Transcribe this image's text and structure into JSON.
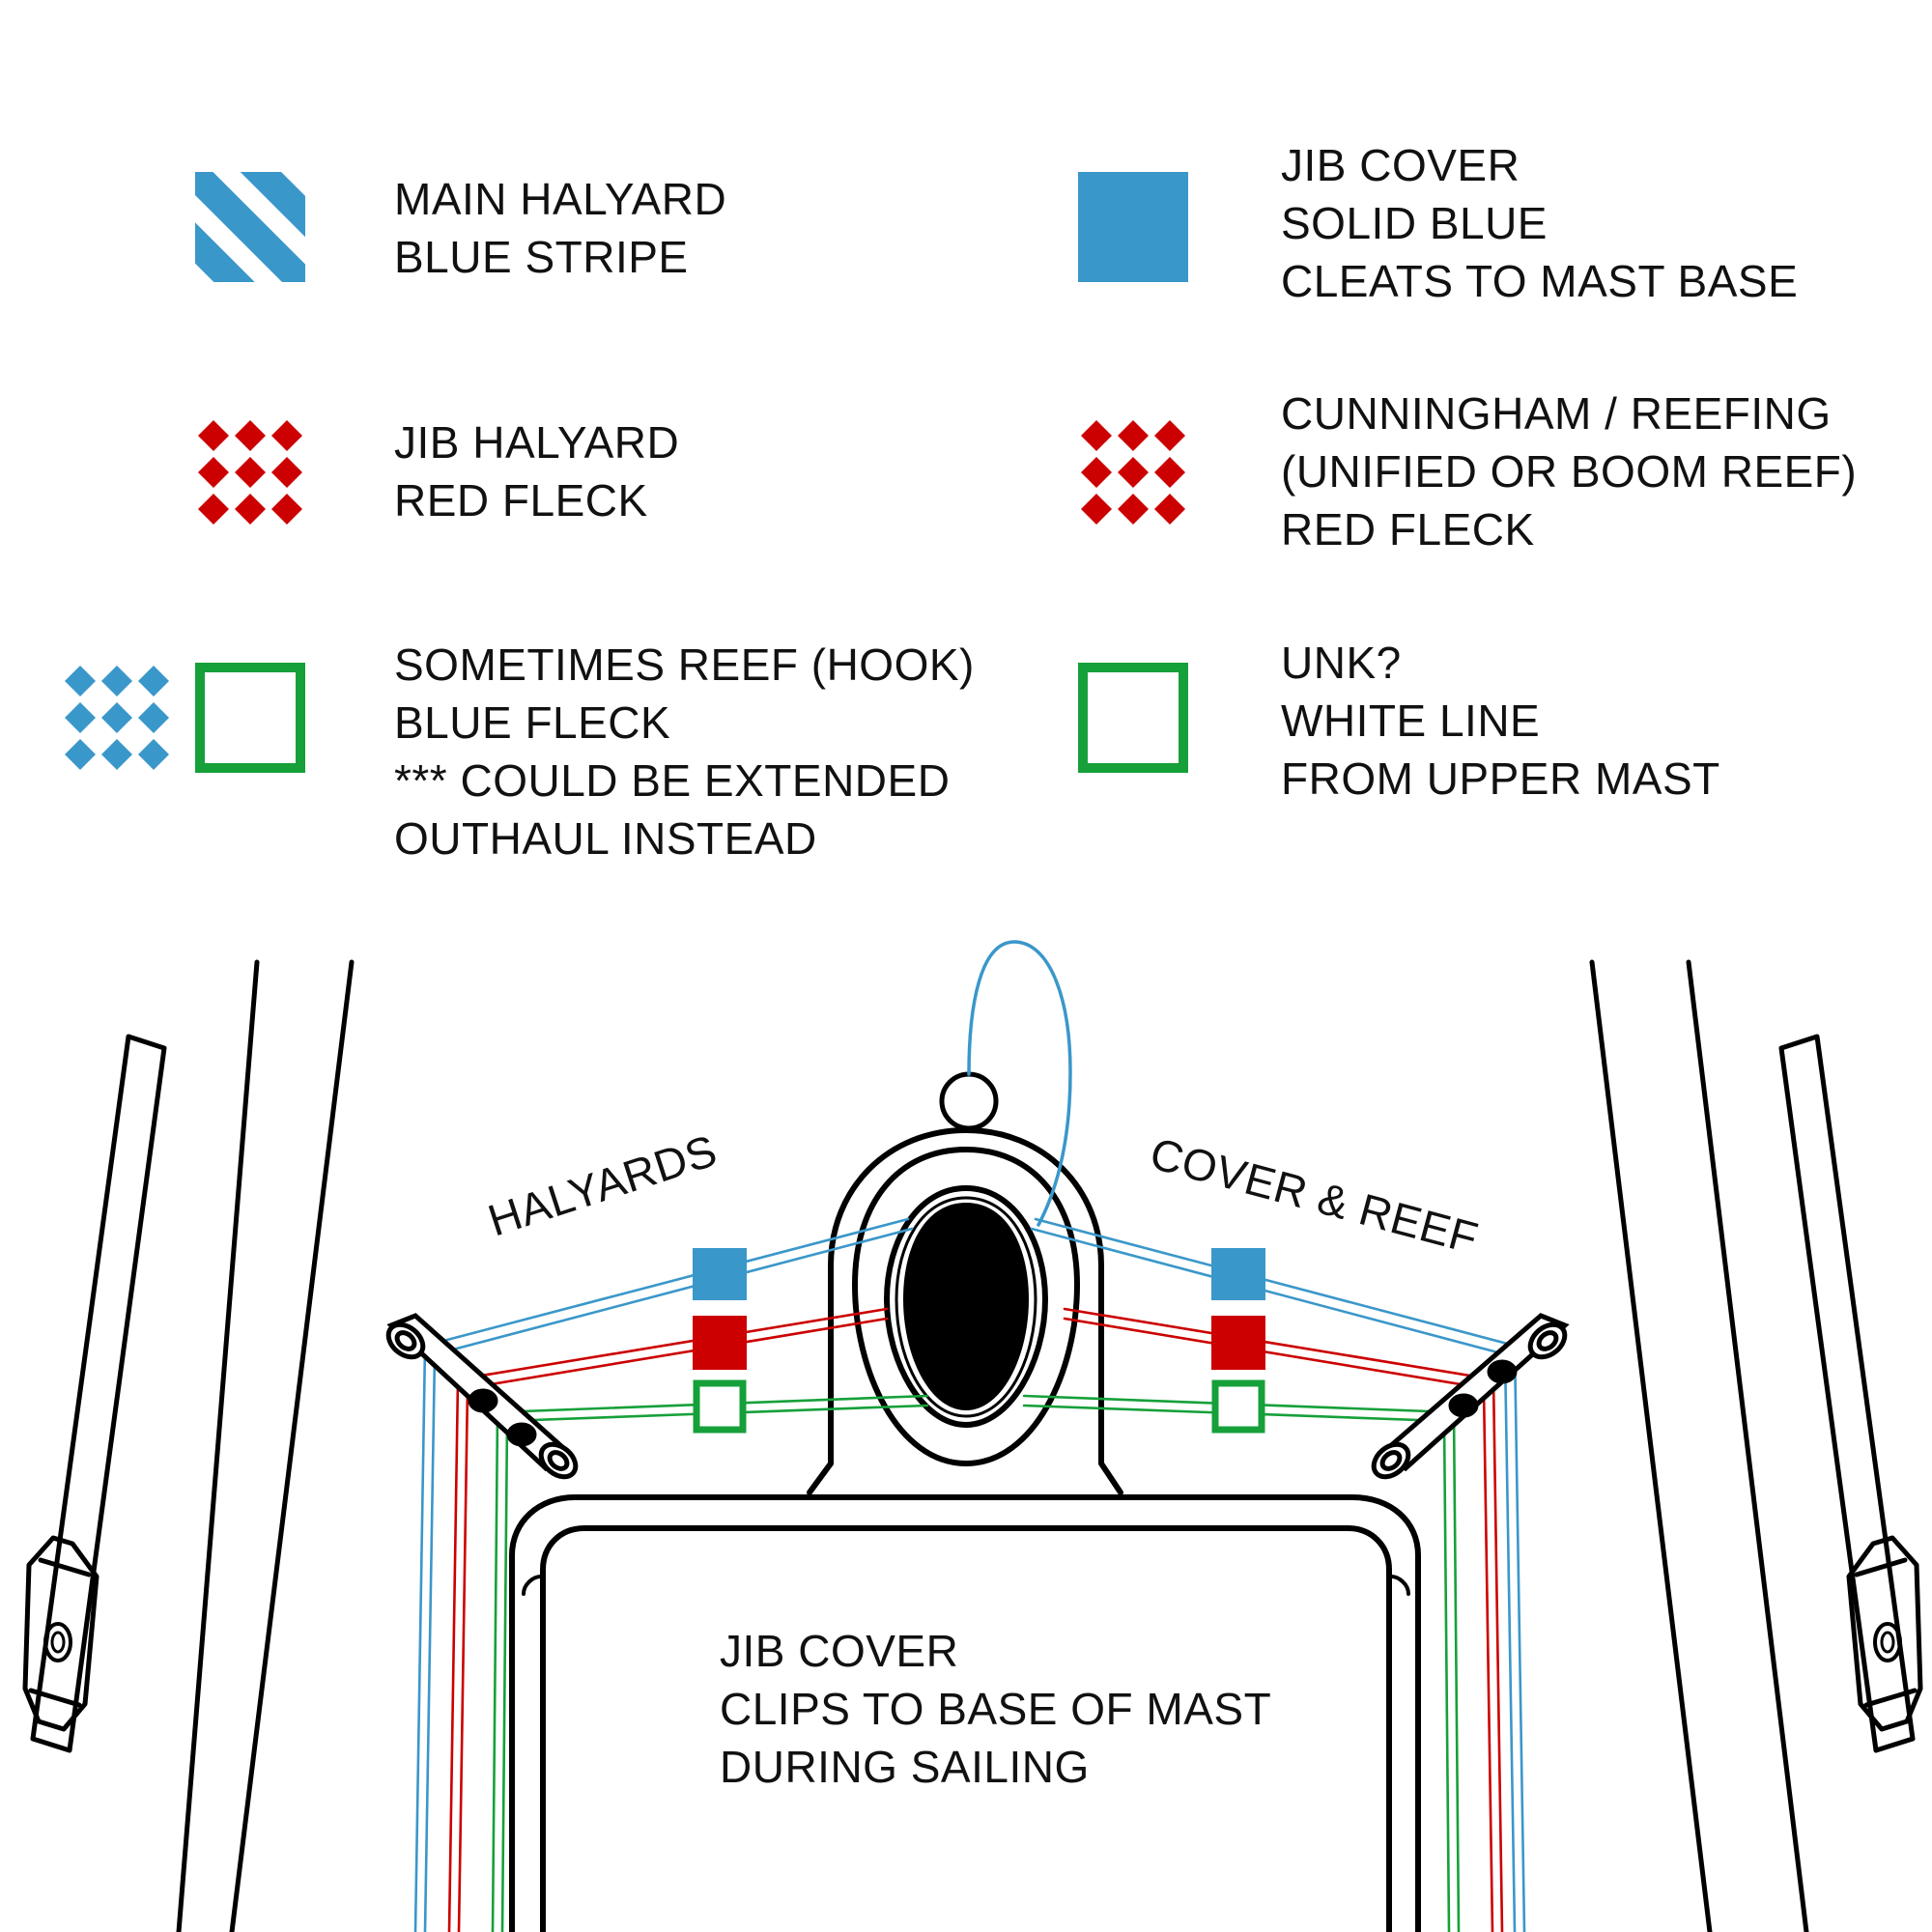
{
  "colors": {
    "blue": "#3a97ca",
    "red": "#cc0000",
    "green": "#16a03a",
    "outline": "#000000",
    "background": "#ffffff"
  },
  "legend": [
    {
      "id": "main-halyard",
      "swatch": "blue-stripe",
      "lines": [
        "MAIN HALYARD",
        "BLUE STRIPE"
      ]
    },
    {
      "id": "jib-cover",
      "swatch": "solid-blue",
      "lines": [
        "JIB COVER",
        "SOLID BLUE",
        "CLEATS TO MAST BASE"
      ]
    },
    {
      "id": "jib-halyard",
      "swatch": "red-fleck",
      "lines": [
        "JIB HALYARD",
        "RED FLECK"
      ]
    },
    {
      "id": "cunningham",
      "swatch": "red-fleck",
      "lines": [
        "CUNNINGHAM / REEFING",
        "(UNIFIED OR BOOM REEF)",
        "RED FLECK"
      ]
    },
    {
      "id": "sometimes-reef",
      "swatch": "blue-fleck-and-green-outline",
      "lines": [
        "SOMETIMES REEF (HOOK)",
        "BLUE FLECK",
        "*** COULD BE EXTENDED",
        "OUTHAUL INSTEAD"
      ]
    },
    {
      "id": "unk",
      "swatch": "green-outline",
      "lines": [
        "UNK?",
        "WHITE LINE",
        "FROM UPPER MAST"
      ]
    }
  ],
  "diagram": {
    "halyards_label": "HALYARDS",
    "cover_reef_label": "COVER & REEF",
    "jib_cover_note": [
      "JIB COVER",
      "CLIPS TO BASE OF MAST",
      "DURING SAILING"
    ]
  }
}
